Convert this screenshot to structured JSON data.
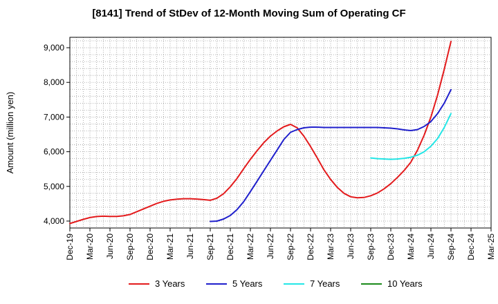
{
  "chart_data": {
    "type": "line",
    "title": "[8141]  Trend of StDev of 12-Month Moving Sum of Operating CF",
    "ylabel": "Amount (million yen)",
    "xlabel": "",
    "x_ticks": [
      "Dec-19",
      "Mar-20",
      "Jun-20",
      "Sep-20",
      "Dec-20",
      "Mar-21",
      "Jun-21",
      "Sep-21",
      "Dec-21",
      "Mar-22",
      "Jun-22",
      "Sep-22",
      "Dec-22",
      "Mar-23",
      "Jun-23",
      "Sep-23",
      "Dec-23",
      "Mar-24",
      "Jun-24",
      "Sep-24",
      "Dec-24",
      "Mar-25"
    ],
    "y_ticks": [
      4000,
      5000,
      6000,
      7000,
      8000,
      9000
    ],
    "y_tick_labels": [
      "4,000",
      "5,000",
      "6,000",
      "7,000",
      "8,000",
      "9,000"
    ],
    "ylim": [
      3800,
      9300
    ],
    "grid": true,
    "legend_position": "bottom",
    "series": [
      {
        "name": "3 Years",
        "color": "#e31a1c",
        "points": [
          [
            "Dec-19",
            3930
          ],
          [
            "Jan-20",
            3990
          ],
          [
            "Feb-20",
            4050
          ],
          [
            "Mar-20",
            4100
          ],
          [
            "Apr-20",
            4130
          ],
          [
            "May-20",
            4140
          ],
          [
            "Jun-20",
            4135
          ],
          [
            "Jul-20",
            4135
          ],
          [
            "Aug-20",
            4150
          ],
          [
            "Sep-20",
            4190
          ],
          [
            "Oct-20",
            4270
          ],
          [
            "Nov-20",
            4350
          ],
          [
            "Dec-20",
            4430
          ],
          [
            "Jan-21",
            4510
          ],
          [
            "Feb-21",
            4570
          ],
          [
            "Mar-21",
            4610
          ],
          [
            "Apr-21",
            4630
          ],
          [
            "May-21",
            4645
          ],
          [
            "Jun-21",
            4645
          ],
          [
            "Jul-21",
            4635
          ],
          [
            "Aug-21",
            4620
          ],
          [
            "Sep-21",
            4600
          ],
          [
            "Oct-21",
            4660
          ],
          [
            "Nov-21",
            4790
          ],
          [
            "Dec-21",
            4990
          ],
          [
            "Jan-22",
            5230
          ],
          [
            "Feb-22",
            5510
          ],
          [
            "Mar-22",
            5780
          ],
          [
            "Apr-22",
            6030
          ],
          [
            "May-22",
            6260
          ],
          [
            "Jun-22",
            6450
          ],
          [
            "Jul-22",
            6600
          ],
          [
            "Aug-22",
            6720
          ],
          [
            "Sep-22",
            6790
          ],
          [
            "Oct-22",
            6690
          ],
          [
            "Nov-22",
            6450
          ],
          [
            "Dec-22",
            6150
          ],
          [
            "Jan-23",
            5820
          ],
          [
            "Feb-23",
            5480
          ],
          [
            "Mar-23",
            5200
          ],
          [
            "Apr-23",
            4970
          ],
          [
            "May-23",
            4800
          ],
          [
            "Jun-23",
            4700
          ],
          [
            "Jul-23",
            4670
          ],
          [
            "Aug-23",
            4680
          ],
          [
            "Sep-23",
            4730
          ],
          [
            "Oct-23",
            4810
          ],
          [
            "Nov-23",
            4930
          ],
          [
            "Dec-23",
            5080
          ],
          [
            "Jan-24",
            5260
          ],
          [
            "Feb-24",
            5460
          ],
          [
            "Mar-24",
            5700
          ],
          [
            "Apr-24",
            6050
          ],
          [
            "May-24",
            6480
          ],
          [
            "Jun-24",
            7000
          ],
          [
            "Jul-24",
            7640
          ],
          [
            "Aug-24",
            8380
          ],
          [
            "Sep-24",
            9180
          ]
        ]
      },
      {
        "name": "5 Years",
        "color": "#1f1fcc",
        "points": [
          [
            "Sep-21",
            3990
          ],
          [
            "Oct-21",
            4000
          ],
          [
            "Nov-21",
            4060
          ],
          [
            "Dec-21",
            4160
          ],
          [
            "Jan-22",
            4330
          ],
          [
            "Feb-22",
            4560
          ],
          [
            "Mar-22",
            4850
          ],
          [
            "Apr-22",
            5150
          ],
          [
            "May-22",
            5450
          ],
          [
            "Jun-22",
            5750
          ],
          [
            "Jul-22",
            6050
          ],
          [
            "Aug-22",
            6350
          ],
          [
            "Sep-22",
            6560
          ],
          [
            "Oct-22",
            6640
          ],
          [
            "Nov-22",
            6690
          ],
          [
            "Dec-22",
            6710
          ],
          [
            "Jan-23",
            6710
          ],
          [
            "Feb-23",
            6700
          ],
          [
            "Mar-23",
            6700
          ],
          [
            "Apr-23",
            6700
          ],
          [
            "May-23",
            6700
          ],
          [
            "Jun-23",
            6700
          ],
          [
            "Jul-23",
            6700
          ],
          [
            "Aug-23",
            6700
          ],
          [
            "Sep-23",
            6700
          ],
          [
            "Oct-23",
            6700
          ],
          [
            "Nov-23",
            6690
          ],
          [
            "Dec-23",
            6680
          ],
          [
            "Jan-24",
            6660
          ],
          [
            "Feb-24",
            6630
          ],
          [
            "Mar-24",
            6610
          ],
          [
            "Apr-24",
            6640
          ],
          [
            "May-24",
            6730
          ],
          [
            "Jun-24",
            6870
          ],
          [
            "Jul-24",
            7100
          ],
          [
            "Aug-24",
            7400
          ],
          [
            "Sep-24",
            7790
          ]
        ]
      },
      {
        "name": "7 Years",
        "color": "#22e6e6",
        "points": [
          [
            "Sep-23",
            5820
          ],
          [
            "Oct-23",
            5800
          ],
          [
            "Nov-23",
            5790
          ],
          [
            "Dec-23",
            5780
          ],
          [
            "Jan-24",
            5790
          ],
          [
            "Feb-24",
            5810
          ],
          [
            "Mar-24",
            5840
          ],
          [
            "Apr-24",
            5900
          ],
          [
            "May-24",
            6000
          ],
          [
            "Jun-24",
            6160
          ],
          [
            "Jul-24",
            6380
          ],
          [
            "Aug-24",
            6700
          ],
          [
            "Sep-24",
            7100
          ]
        ]
      },
      {
        "name": "10 Years",
        "color": "#1a8a1a",
        "points": []
      }
    ]
  }
}
